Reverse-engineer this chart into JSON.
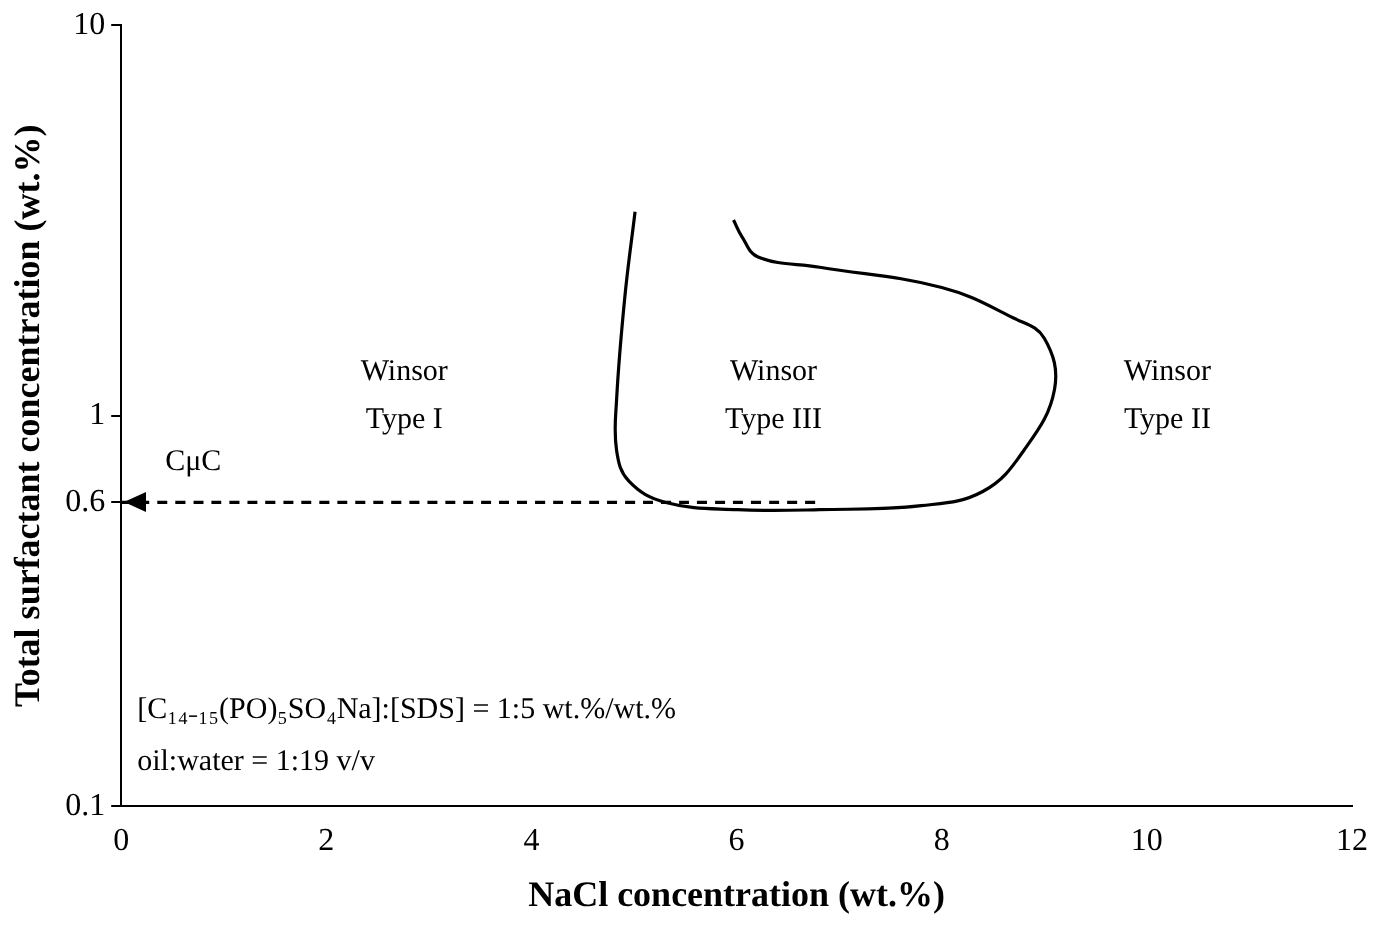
{
  "chart_data": {
    "type": "line",
    "xlabel": "NaCl concentration (wt.%)",
    "ylabel": "Total surfactant concentration (wt.%)",
    "log": "y",
    "grid": false,
    "legend": false,
    "marker": "none",
    "xlim": [
      0,
      12
    ],
    "xticks": [
      0,
      2,
      4,
      6,
      8,
      10,
      12
    ],
    "ylim": [
      0.1,
      10
    ],
    "yticks": [
      0.1,
      0.6,
      1,
      10
    ],
    "series": [
      {
        "color": "#000000",
        "line_style": "solid",
        "x": [
          5.01,
          4.91,
          4.83,
          4.83,
          4.95,
          5.31,
          6.01,
          6.81,
          7.8,
          8.4,
          8.8,
          9.1,
          9.0,
          8.7,
          8.0,
          6.81,
          6.21,
          6.05,
          5.97
        ],
        "values": [
          3.33,
          2.01,
          1.1,
          0.815,
          0.68,
          0.6,
          0.575,
          0.575,
          0.589,
          0.64,
          0.815,
          1.17,
          1.58,
          1.78,
          2.13,
          2.4,
          2.55,
          2.88,
          3.17
        ]
      },
      {
        "color": "#000000",
        "line_style": "dashed",
        "x": [
          0,
          6.8
        ],
        "values": [
          0.6,
          0.6
        ]
      }
    ],
    "annotations": [
      {
        "text": "CμC",
        "x": 0,
        "y": 0.6
      },
      "Winsor\nType I",
      "Winsor\nType III",
      "Winsor\nType II",
      "[C₁₄₋₁₅(PO)₅SO₄Na]:[SDS] = 1:5 wt.%/wt.%",
      "oil:water = 1:19 v/v"
    ]
  }
}
